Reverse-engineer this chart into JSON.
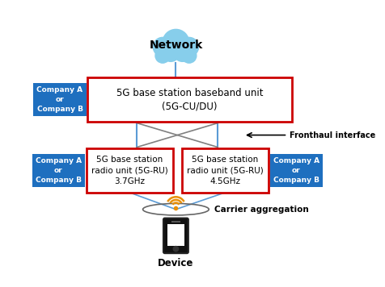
{
  "background_color": "#ffffff",
  "blue_box_color": "#1E6FBF",
  "red_box_edge_color": "#CC0000",
  "cloud_color": "#87CEEB",
  "cloud_text": "Network",
  "baseband_text": "5G base station baseband unit\n(5G-CU/DU)",
  "ru1_text": "5G base station\nradio unit (5G-RU)\n3.7GHz",
  "ru2_text": "5G base station\nradio unit (5G-RU)\n4.5GHz",
  "company_text": "Company A\nor\nCompany B",
  "fronthaul_label": "Fronthaul interface",
  "carrier_label": "Carrier aggregation",
  "device_label": "Device",
  "line_color": "#5B9BD5",
  "fronthaul_line_color": "#808080",
  "wifi_color": "#E8900A"
}
